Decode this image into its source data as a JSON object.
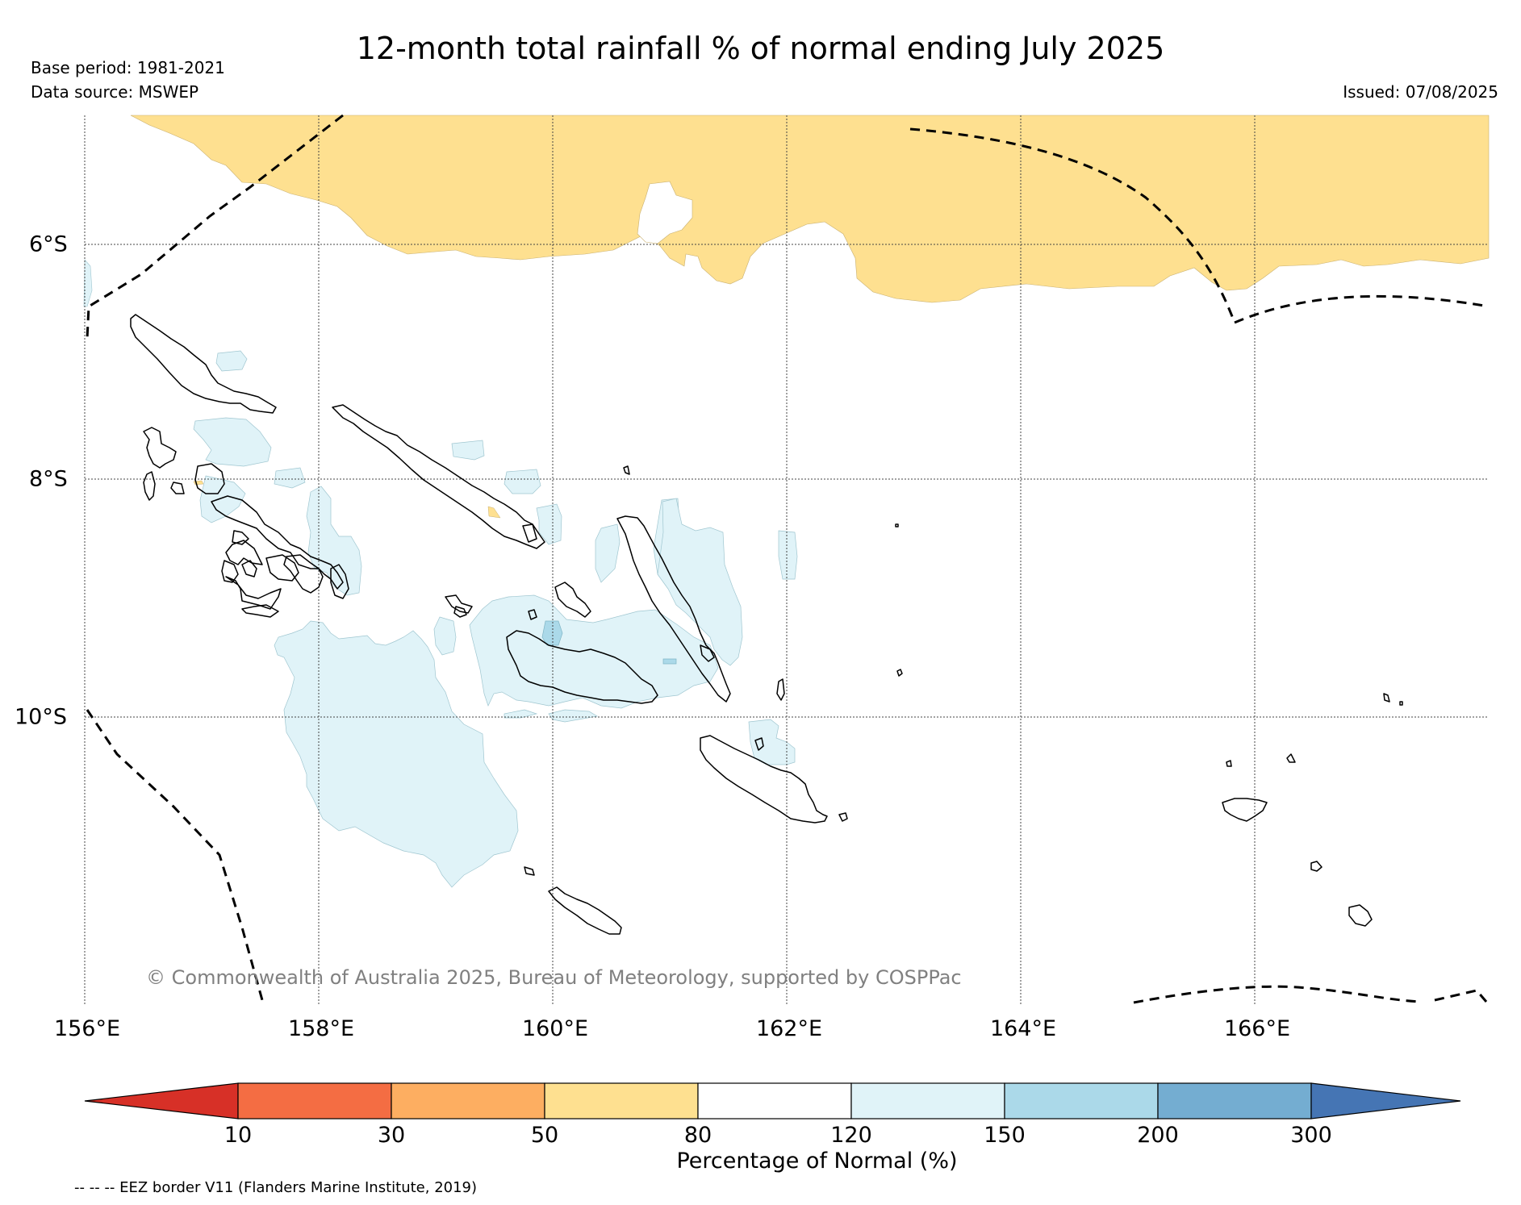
{
  "title": "12-month total rainfall % of normal ending July 2025",
  "base_period": "Base period: 1981-2021",
  "data_source": "Data source: MSWEP",
  "issued": "Issued: 07/08/2025",
  "copyright": "© Commonwealth of Australia 2025, Bureau of Meteorology, supported by COSPPac",
  "longitude_labels": [
    "156°E",
    "158°E",
    "160°E",
    "162°E",
    "164°E",
    "166°E"
  ],
  "latitude_labels": [
    "6°S",
    "8°S",
    "10°S"
  ],
  "colorbar": {
    "label": "Percentage of Normal (%)",
    "ticks": [
      "10",
      "30",
      "50",
      "80",
      "120",
      "150",
      "200",
      "300"
    ],
    "colors": [
      "#d73027",
      "#f46d43",
      "#fdae61",
      "#fee090",
      "#ffffff",
      "#e0f3f8",
      "#abd9e9",
      "#74add1",
      "#4575b4"
    ]
  },
  "eez_note": "-- -- -- EEZ border V11 (Flanders Marine Institute, 2019)"
}
